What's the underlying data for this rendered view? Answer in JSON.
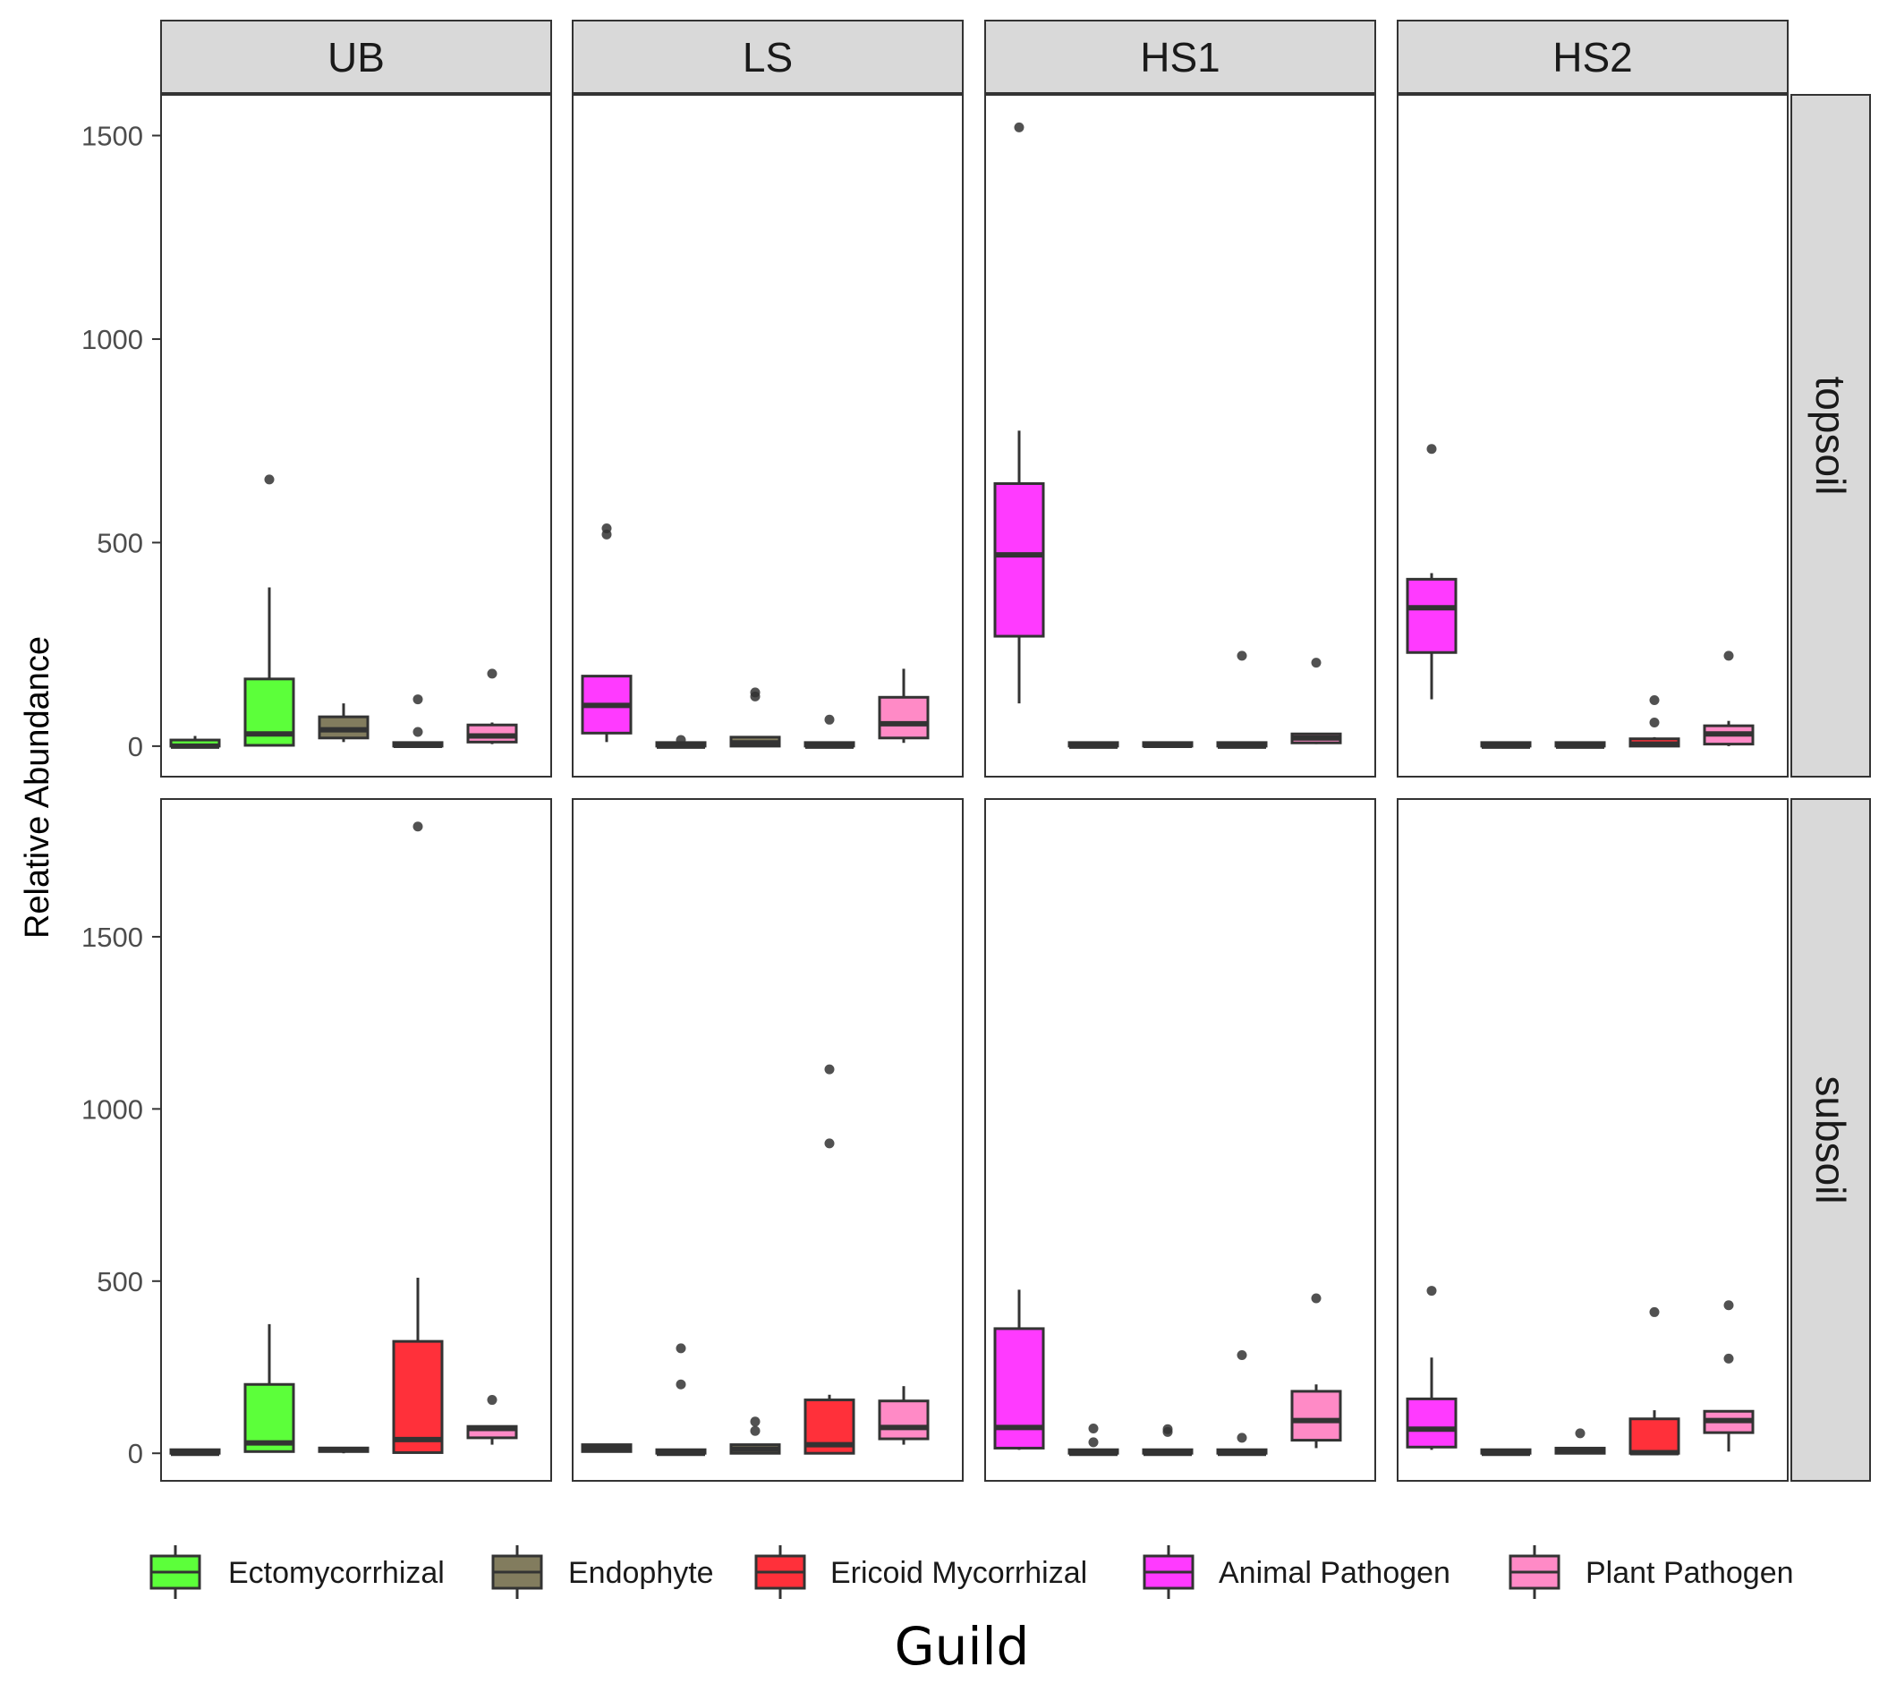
{
  "chart_data": {
    "type": "boxplot",
    "xlabel": "Guild",
    "ylabel": "Relative Abundance",
    "facet_columns": [
      "UB",
      "LS",
      "HS1",
      "HS2"
    ],
    "facet_rows": [
      "topsoil",
      "subsoil"
    ],
    "legend": {
      "position": "bottom",
      "entries": [
        {
          "name": "Ectomycorrhizal",
          "color": "#5CFF3A"
        },
        {
          "name": "Endophyte",
          "color": "#827C5E"
        },
        {
          "name": "Ericoid Mycorrhizal",
          "color": "#FF303A"
        },
        {
          "name": "Animal Pathogen",
          "color": "#FF3AFF"
        },
        {
          "name": "Plant Pathogen",
          "color": "#FF8AC6"
        }
      ]
    },
    "guild_order": [
      "Ectomycorrhizal",
      "Endophyte",
      "Ericoid Mycorrhizal",
      "Animal Pathogen",
      "Plant Pathogen"
    ],
    "y_axis": {
      "topsoil": {
        "range": [
          -75,
          1600
        ],
        "ticks": [
          0,
          500,
          1000,
          1500
        ]
      },
      "subsoil": {
        "range": [
          -80,
          1900
        ],
        "ticks": [
          0,
          500,
          1000,
          1500
        ]
      }
    },
    "panels": [
      {
        "row": "topsoil",
        "col": "UB",
        "boxes": [
          {
            "guild": "Ectomycorrhizal",
            "slot": 1,
            "whisker_low": 0,
            "q1": 0,
            "median": 0,
            "q3": 15,
            "whisker_high": 25,
            "outliers": []
          },
          {
            "guild": "Ectomycorrhizal",
            "slot": 2,
            "whisker_low": 0,
            "q1": 2,
            "median": 30,
            "q3": 165,
            "whisker_high": 390,
            "outliers": [
              655
            ]
          },
          {
            "guild": "Endophyte",
            "slot": 3,
            "whisker_low": 10,
            "q1": 20,
            "median": 40,
            "q3": 72,
            "whisker_high": 105,
            "outliers": []
          },
          {
            "guild": "Ericoid Mycorrhizal",
            "slot": 4,
            "whisker_low": 0,
            "q1": 0,
            "median": 2,
            "q3": 5,
            "whisker_high": 8,
            "outliers": [
              35,
              115
            ]
          },
          {
            "guild": "Plant Pathogen",
            "slot": 5,
            "whisker_low": 5,
            "q1": 10,
            "median": 25,
            "q3": 52,
            "whisker_high": 58,
            "outliers": [
              178
            ]
          }
        ]
      },
      {
        "row": "topsoil",
        "col": "LS",
        "boxes": [
          {
            "guild": "Animal Pathogen",
            "slot": 1,
            "whisker_low": 10,
            "q1": 32,
            "median": 100,
            "q3": 172,
            "whisker_high": 172,
            "outliers": [
              520,
              535
            ]
          },
          {
            "guild": "Ectomycorrhizal",
            "slot": 2,
            "whisker_low": 0,
            "q1": 0,
            "median": 0,
            "q3": 2,
            "whisker_high": 5,
            "outliers": [
              15
            ]
          },
          {
            "guild": "Endophyte",
            "slot": 3,
            "whisker_low": 0,
            "q1": 0,
            "median": 8,
            "q3": 22,
            "whisker_high": 22,
            "outliers": [
              122,
              132
            ]
          },
          {
            "guild": "Ericoid Mycorrhizal",
            "slot": 4,
            "whisker_low": 0,
            "q1": 0,
            "median": 0,
            "q3": 5,
            "whisker_high": 10,
            "outliers": [
              65
            ]
          },
          {
            "guild": "Plant Pathogen",
            "slot": 5,
            "whisker_low": 8,
            "q1": 20,
            "median": 55,
            "q3": 120,
            "whisker_high": 190,
            "outliers": []
          }
        ]
      },
      {
        "row": "topsoil",
        "col": "HS1",
        "boxes": [
          {
            "guild": "Animal Pathogen",
            "slot": 1,
            "whisker_low": 105,
            "q1": 270,
            "median": 470,
            "q3": 645,
            "whisker_high": 775,
            "outliers": [
              1520
            ]
          },
          {
            "guild": "Ectomycorrhizal",
            "slot": 2,
            "whisker_low": 0,
            "q1": 0,
            "median": 0,
            "q3": 2,
            "whisker_high": 8,
            "outliers": []
          },
          {
            "guild": "Endophyte",
            "slot": 3,
            "whisker_low": 0,
            "q1": 0,
            "median": 2,
            "q3": 5,
            "whisker_high": 5,
            "outliers": []
          },
          {
            "guild": "Ericoid Mycorrhizal",
            "slot": 4,
            "whisker_low": 0,
            "q1": 0,
            "median": 0,
            "q3": 5,
            "whisker_high": 8,
            "outliers": [
              222
            ]
          },
          {
            "guild": "Plant Pathogen",
            "slot": 5,
            "whisker_low": 5,
            "q1": 8,
            "median": 20,
            "q3": 30,
            "whisker_high": 30,
            "outliers": [
              205
            ]
          }
        ]
      },
      {
        "row": "topsoil",
        "col": "HS2",
        "boxes": [
          {
            "guild": "Animal Pathogen",
            "slot": 1,
            "whisker_low": 115,
            "q1": 230,
            "median": 340,
            "q3": 410,
            "whisker_high": 425,
            "outliers": [
              730
            ]
          },
          {
            "guild": "Ectomycorrhizal",
            "slot": 2,
            "whisker_low": 0,
            "q1": 0,
            "median": 0,
            "q3": 2,
            "whisker_high": 2,
            "outliers": []
          },
          {
            "guild": "Endophyte",
            "slot": 3,
            "whisker_low": 0,
            "q1": 0,
            "median": 0,
            "q3": 2,
            "whisker_high": 2,
            "outliers": []
          },
          {
            "guild": "Ericoid Mycorrhizal",
            "slot": 4,
            "whisker_low": 0,
            "q1": 0,
            "median": 5,
            "q3": 18,
            "whisker_high": 22,
            "outliers": [
              58,
              113
            ]
          },
          {
            "guild": "Plant Pathogen",
            "slot": 5,
            "whisker_low": 0,
            "q1": 5,
            "median": 30,
            "q3": 50,
            "whisker_high": 62,
            "outliers": [
              222
            ]
          }
        ]
      },
      {
        "row": "subsoil",
        "col": "UB",
        "boxes": [
          {
            "guild": "Ectomycorrhizal",
            "slot": 1,
            "whisker_low": 0,
            "q1": 0,
            "median": 0,
            "q3": 2,
            "whisker_high": 4,
            "outliers": []
          },
          {
            "guild": "Ectomycorrhizal",
            "slot": 2,
            "whisker_low": 2,
            "q1": 5,
            "median": 30,
            "q3": 200,
            "whisker_high": 375,
            "outliers": []
          },
          {
            "guild": "Endophyte",
            "slot": 3,
            "whisker_low": 0,
            "q1": 5,
            "median": 10,
            "q3": 15,
            "whisker_high": 18,
            "outliers": []
          },
          {
            "guild": "Ericoid Mycorrhizal",
            "slot": 4,
            "whisker_low": 0,
            "q1": 2,
            "median": 40,
            "q3": 325,
            "whisker_high": 510,
            "outliers": [
              1820
            ]
          },
          {
            "guild": "Plant Pathogen",
            "slot": 5,
            "whisker_low": 25,
            "q1": 45,
            "median": 72,
            "q3": 78,
            "whisker_high": 78,
            "outliers": [
              155
            ]
          }
        ]
      },
      {
        "row": "subsoil",
        "col": "LS",
        "boxes": [
          {
            "guild": "Animal Pathogen",
            "slot": 1,
            "whisker_low": 2,
            "q1": 5,
            "median": 15,
            "q3": 25,
            "whisker_high": 25,
            "outliers": []
          },
          {
            "guild": "Ectomycorrhizal",
            "slot": 2,
            "whisker_low": 0,
            "q1": 0,
            "median": 0,
            "q3": 2,
            "whisker_high": 5,
            "outliers": [
              200,
              305
            ]
          },
          {
            "guild": "Endophyte",
            "slot": 3,
            "whisker_low": 0,
            "q1": 0,
            "median": 12,
            "q3": 25,
            "whisker_high": 28,
            "outliers": [
              65,
              92
            ]
          },
          {
            "guild": "Ericoid Mycorrhizal",
            "slot": 4,
            "whisker_low": 0,
            "q1": 0,
            "median": 25,
            "q3": 155,
            "whisker_high": 170,
            "outliers": [
              900,
              1115
            ]
          },
          {
            "guild": "Plant Pathogen",
            "slot": 5,
            "whisker_low": 25,
            "q1": 42,
            "median": 75,
            "q3": 152,
            "whisker_high": 195,
            "outliers": []
          }
        ]
      },
      {
        "row": "subsoil",
        "col": "HS1",
        "boxes": [
          {
            "guild": "Animal Pathogen",
            "slot": 1,
            "whisker_low": 10,
            "q1": 15,
            "median": 75,
            "q3": 362,
            "whisker_high": 475,
            "outliers": []
          },
          {
            "guild": "Ectomycorrhizal",
            "slot": 2,
            "whisker_low": 0,
            "q1": 0,
            "median": 0,
            "q3": 2,
            "whisker_high": 5,
            "outliers": [
              32,
              72
            ]
          },
          {
            "guild": "Endophyte",
            "slot": 3,
            "whisker_low": 0,
            "q1": 0,
            "median": 0,
            "q3": 2,
            "whisker_high": 2,
            "outliers": [
              62,
              70
            ]
          },
          {
            "guild": "Ericoid Mycorrhizal",
            "slot": 4,
            "whisker_low": 0,
            "q1": 0,
            "median": 0,
            "q3": 5,
            "whisker_high": 8,
            "outliers": [
              45,
              285
            ]
          },
          {
            "guild": "Plant Pathogen",
            "slot": 5,
            "whisker_low": 15,
            "q1": 38,
            "median": 95,
            "q3": 180,
            "whisker_high": 200,
            "outliers": [
              450
            ]
          }
        ]
      },
      {
        "row": "subsoil",
        "col": "HS2",
        "boxes": [
          {
            "guild": "Animal Pathogen",
            "slot": 1,
            "whisker_low": 10,
            "q1": 18,
            "median": 70,
            "q3": 158,
            "whisker_high": 278,
            "outliers": [
              472
            ]
          },
          {
            "guild": "Ectomycorrhizal",
            "slot": 2,
            "whisker_low": 0,
            "q1": 0,
            "median": 0,
            "q3": 2,
            "whisker_high": 5,
            "outliers": []
          },
          {
            "guild": "Endophyte",
            "slot": 3,
            "whisker_low": 0,
            "q1": 0,
            "median": 5,
            "q3": 15,
            "whisker_high": 15,
            "outliers": [
              58
            ]
          },
          {
            "guild": "Ericoid Mycorrhizal",
            "slot": 4,
            "whisker_low": 0,
            "q1": 0,
            "median": 2,
            "q3": 100,
            "whisker_high": 125,
            "outliers": [
              410
            ]
          },
          {
            "guild": "Plant Pathogen",
            "slot": 5,
            "whisker_low": 5,
            "q1": 60,
            "median": 95,
            "q3": 122,
            "whisker_high": 122,
            "outliers": [
              275,
              430
            ]
          }
        ]
      }
    ]
  }
}
